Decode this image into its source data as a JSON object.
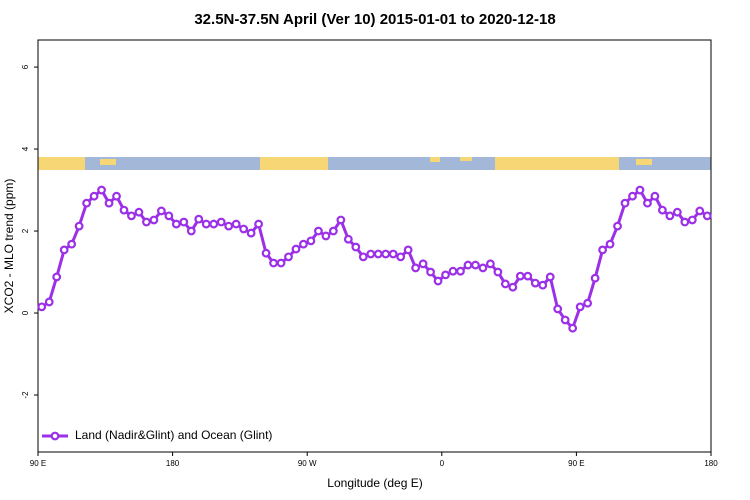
{
  "chart_data": {
    "type": "line",
    "title": "32.5N-37.5N April (Ver 10)   2015-01-01 to 2020-12-18",
    "xlabel": "Longitude (deg E)",
    "ylabel": "XCO2 - MLO trend (ppm)",
    "xlim": [
      90,
      540
    ],
    "ylim": [
      -3.39,
      6.66
    ],
    "xticks": [
      {
        "value": 90,
        "label": "90 E"
      },
      180,
      {
        "value": 270,
        "label": "90 W"
      },
      {
        "value": 360,
        "label": "0"
      },
      {
        "value": 450,
        "label": "90 E"
      },
      {
        "value": 540,
        "label": "180"
      }
    ],
    "yticks": [
      -2,
      0,
      2,
      4,
      6
    ],
    "legend": "bottom-left",
    "x": [
      92.5,
      97.5,
      102.5,
      107.5,
      112.5,
      117.5,
      122.5,
      127.5,
      132.5,
      137.5,
      142.5,
      147.5,
      152.5,
      157.5,
      162.5,
      167.5,
      172.5,
      177.5,
      182.5,
      187.5,
      192.5,
      197.5,
      202.5,
      207.5,
      212.5,
      217.5,
      222.5,
      227.5,
      232.5,
      237.5,
      242.5,
      247.5,
      252.5,
      257.5,
      262.5,
      267.5,
      272.5,
      277.5,
      282.5,
      287.5,
      292.5,
      297.5,
      302.5,
      307.5,
      312.5,
      317.5,
      322.5,
      327.5,
      332.5,
      337.5,
      342.5,
      347.5,
      352.5,
      357.5,
      362.5,
      367.5,
      372.5,
      377.5,
      382.5,
      387.5,
      392.5,
      397.5,
      402.5,
      407.5,
      412.5,
      417.5,
      422.5,
      427.5,
      432.5,
      437.5,
      442.5,
      447.5,
      452.5,
      457.5,
      462.5,
      467.5,
      472.5,
      477.5,
      482.5,
      487.5,
      492.5,
      497.5,
      502.5,
      507.5,
      512.5,
      517.5,
      522.5,
      527.5,
      532.5,
      537.5
    ],
    "series": [
      {
        "name": "Land (Nadir&Glint) and Ocean (Glint)",
        "color": "#9b30e8",
        "values": [
          0.15,
          0.27,
          0.88,
          1.54,
          1.68,
          2.12,
          2.68,
          2.85,
          3.0,
          2.68,
          2.85,
          2.51,
          2.37,
          2.46,
          2.22,
          2.27,
          2.49,
          2.37,
          2.17,
          2.22,
          2.0,
          2.29,
          2.17,
          2.17,
          2.22,
          2.12,
          2.17,
          2.05,
          1.95,
          2.17,
          1.46,
          1.22,
          1.22,
          1.37,
          1.56,
          1.68,
          1.76,
          2.0,
          1.88,
          2.0,
          2.27,
          1.8,
          1.61,
          1.37,
          1.44,
          1.44,
          1.44,
          1.44,
          1.37,
          1.54,
          1.1,
          1.2,
          1.0,
          0.78,
          0.93,
          1.02,
          1.02,
          1.17,
          1.17,
          1.1,
          1.2,
          1.0,
          0.71,
          0.63,
          0.9,
          0.9,
          0.73,
          0.68,
          0.88,
          0.1,
          -0.17,
          -0.37,
          0.15,
          0.24,
          0.85,
          1.54,
          1.68,
          2.12,
          2.68,
          2.85,
          3.0,
          2.68,
          2.85,
          2.51,
          2.37,
          2.46,
          2.22,
          2.27,
          2.49,
          2.37
        ]
      }
    ]
  }
}
